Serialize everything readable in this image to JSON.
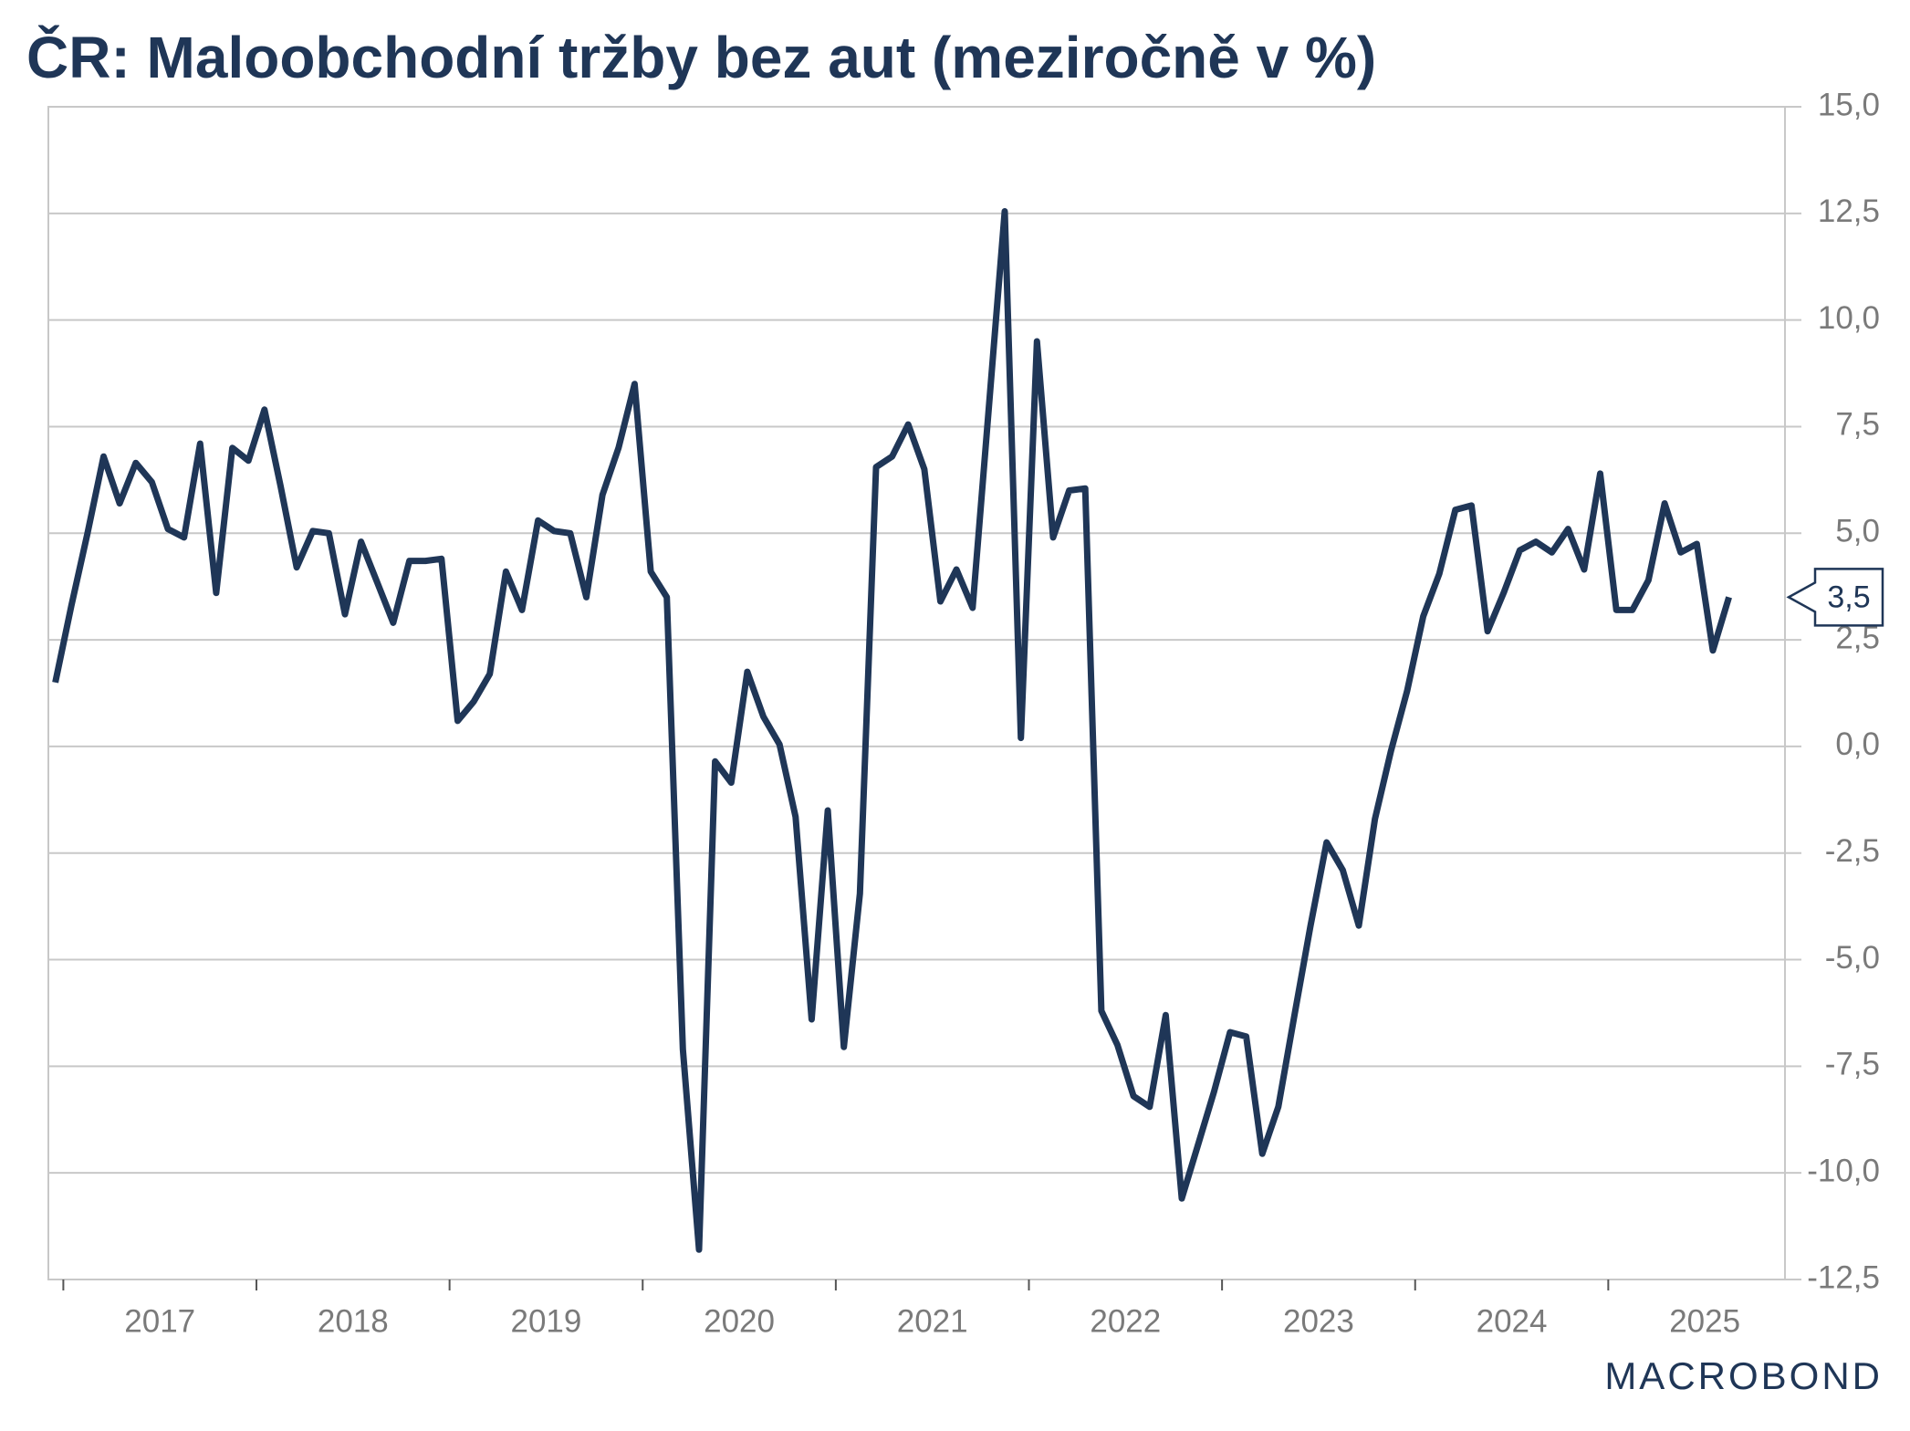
{
  "chart_data": {
    "type": "line",
    "title": "ČR: Maloobchodní tržby bez aut (meziročně v %)",
    "x_labels": [
      "2017",
      "2018",
      "2019",
      "2020",
      "2021",
      "2022",
      "2023",
      "2024",
      "2025"
    ],
    "series": [
      {
        "color": "#1f3657",
        "values": [
          1.5,
          3.3,
          5.0,
          6.8,
          5.7,
          6.65,
          6.2,
          5.1,
          4.9,
          7.1,
          3.6,
          7.0,
          6.7,
          7.9,
          6.1,
          4.2,
          5.05,
          5.0,
          3.1,
          4.8,
          3.85,
          2.9,
          4.35,
          4.35,
          4.4,
          0.6,
          1.05,
          1.7,
          4.1,
          3.2,
          5.3,
          5.05,
          5.0,
          3.5,
          5.9,
          7.0,
          8.5,
          4.1,
          3.5,
          -7.1,
          -11.8,
          -0.35,
          -0.85,
          1.75,
          0.7,
          0.05,
          -1.65,
          -6.4,
          -1.5,
          -7.05,
          -3.45,
          6.55,
          6.8,
          7.55,
          6.5,
          3.4,
          4.15,
          3.25,
          7.9,
          12.55,
          0.2,
          9.5,
          4.9,
          6.0,
          6.05,
          -6.2,
          -7.0,
          -8.2,
          -8.45,
          -6.3,
          -10.6,
          -9.35,
          -8.1,
          -6.7,
          -6.8,
          -9.55,
          -8.45,
          -6.3,
          -4.2,
          -2.25,
          -2.9,
          -4.2,
          -1.7,
          -0.1,
          1.3,
          3.05,
          4.05,
          5.55,
          5.65,
          2.7,
          3.6,
          4.6,
          4.8,
          4.55,
          5.1,
          4.15,
          6.4,
          3.2,
          3.2,
          3.9,
          5.7,
          4.55,
          4.75,
          2.25,
          3.5
        ],
        "value_labels": [
          null,
          null,
          null,
          null,
          null,
          null,
          null,
          null,
          null,
          null,
          null,
          null,
          null,
          null,
          null,
          null,
          null,
          null,
          null,
          null,
          null,
          null,
          null,
          null,
          null,
          null,
          null,
          null,
          null,
          null,
          null,
          null,
          null,
          null,
          null,
          null,
          null,
          null,
          null,
          null,
          null,
          null,
          null,
          null,
          null,
          null,
          null,
          null,
          null,
          null,
          null,
          null,
          null,
          null,
          null,
          null,
          null,
          null,
          null,
          null,
          null,
          null,
          null,
          null,
          null,
          null,
          null,
          null,
          null,
          null,
          null,
          null,
          null,
          null,
          null,
          null,
          null,
          null,
          null,
          null,
          null,
          null,
          null,
          null,
          null,
          null,
          null,
          null,
          null,
          null,
          null,
          null,
          null,
          null,
          null,
          null,
          null,
          null,
          null,
          null,
          null,
          null,
          null,
          null,
          "3,5"
        ]
      }
    ],
    "ylim": [
      -12.5,
      15
    ],
    "yticks": [
      {
        "value": 15,
        "label": "15,0"
      },
      {
        "value": 12.5,
        "label": "12,5"
      },
      {
        "value": 10,
        "label": "10,0"
      },
      {
        "value": 7.5,
        "label": "7,5"
      },
      {
        "value": 5,
        "label": "5,0"
      },
      {
        "value": 2.5,
        "label": "2,5"
      },
      {
        "value": 0,
        "label": "0,0"
      },
      {
        "value": -2.5,
        "label": "-2,5"
      },
      {
        "value": -5,
        "label": "-5,0"
      },
      {
        "value": -7.5,
        "label": "-7,5"
      },
      {
        "value": -10,
        "label": "-10,0"
      },
      {
        "value": -12.5,
        "label": "-12,5"
      }
    ],
    "grid": true,
    "source": "MACROBOND"
  }
}
